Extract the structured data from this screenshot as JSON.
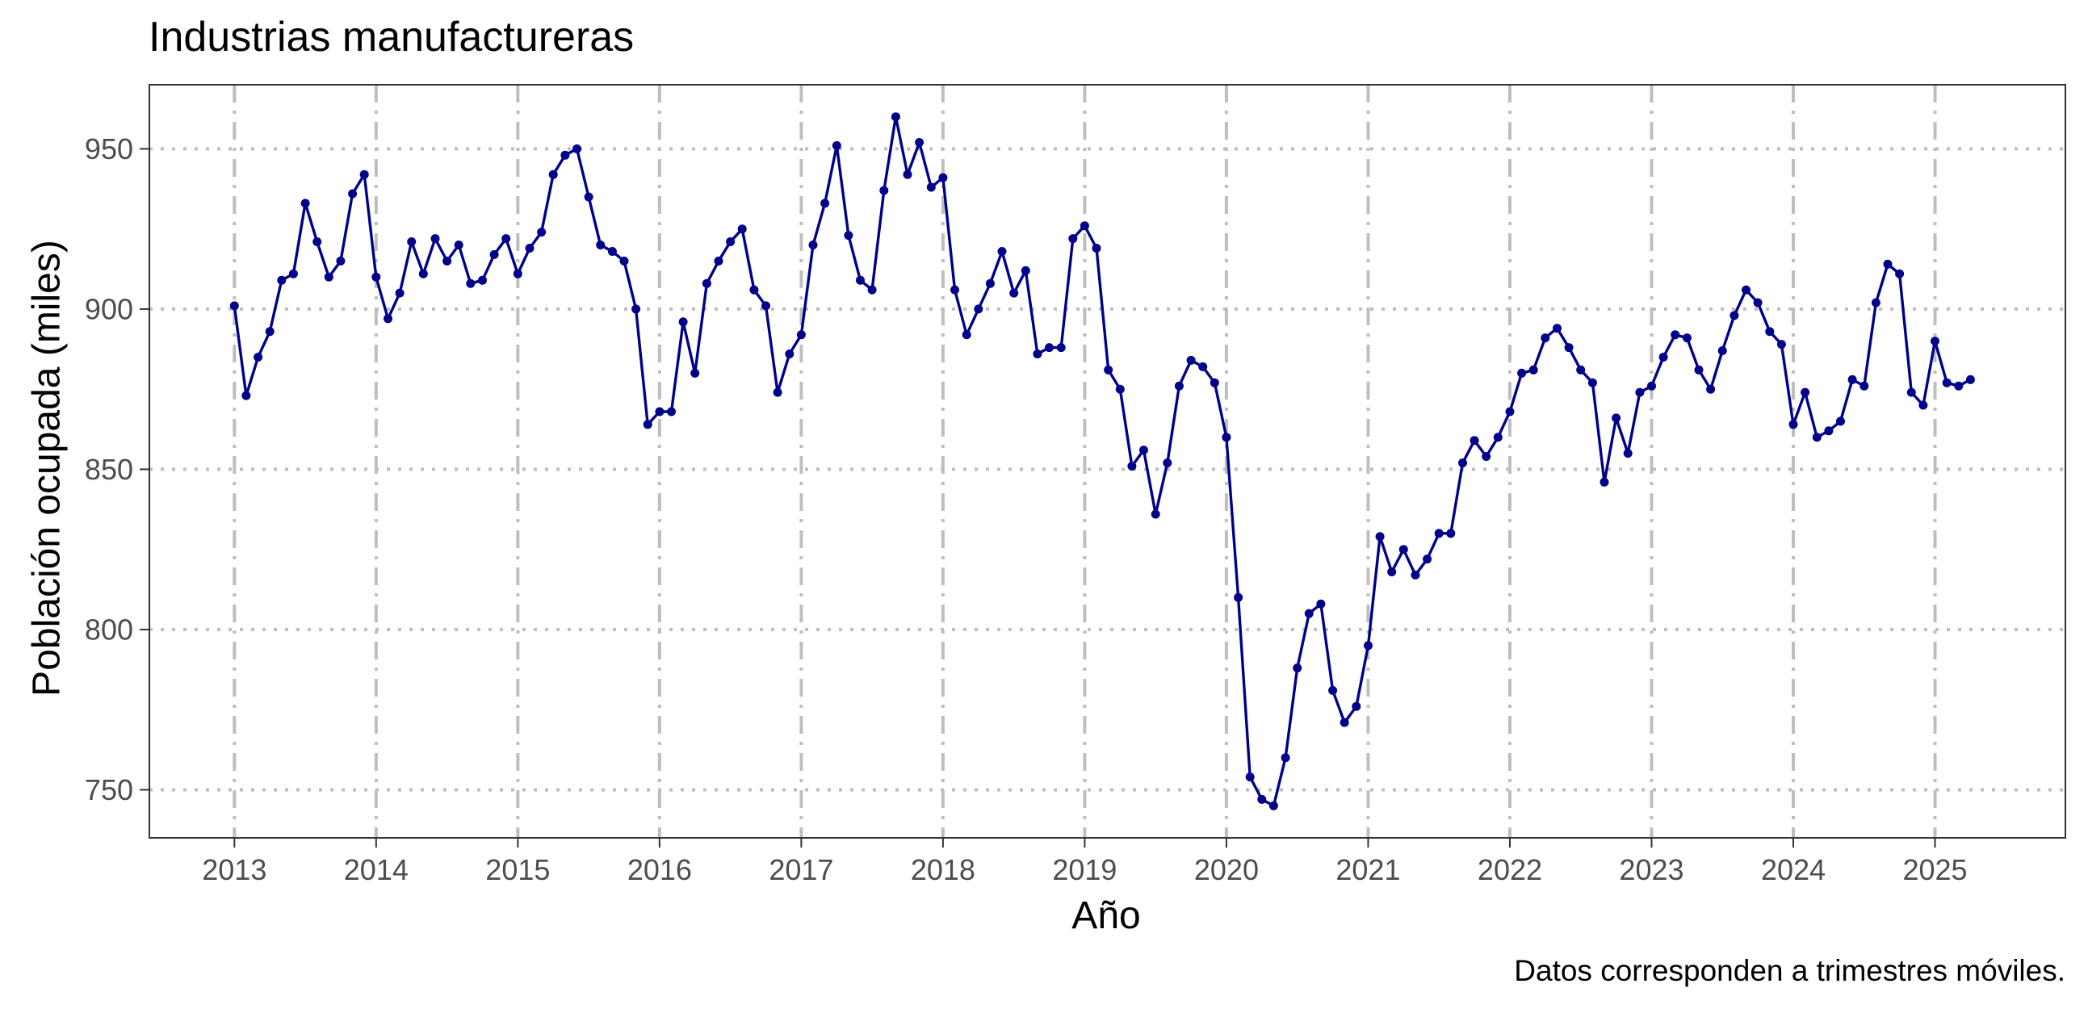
{
  "chart_data": {
    "type": "line",
    "title": "Industrias manufactureras",
    "xlabel": "Año",
    "ylabel": "Población ocupada (miles)",
    "caption": "Datos corresponden a trimestres móviles.",
    "x_ticks": [
      "2013",
      "2014",
      "2015",
      "2016",
      "2017",
      "2018",
      "2019",
      "2020",
      "2021",
      "2022",
      "2023",
      "2024",
      "2025"
    ],
    "y_ticks": [
      750,
      800,
      850,
      900,
      950
    ],
    "xlim": [
      2012.4,
      2025.92
    ],
    "ylim": [
      735,
      970
    ],
    "grid": true,
    "colors": {
      "line": "#00008B",
      "point": "#00008B",
      "grid": "#BEBEBE",
      "panel_border": "#333333"
    },
    "series": [
      {
        "start_year": 2013,
        "values": [
          901,
          873,
          885,
          893,
          909,
          911,
          933,
          921,
          910,
          915,
          936,
          942,
          910,
          897,
          905,
          921,
          911,
          922,
          915,
          920,
          908,
          909,
          917,
          922,
          911,
          919,
          924,
          942,
          948,
          950,
          935,
          920,
          918,
          915,
          900,
          864,
          868,
          868,
          896,
          880,
          908,
          915,
          921,
          925,
          906,
          901,
          874,
          886,
          892,
          920,
          933,
          951,
          923,
          909,
          906,
          937,
          960,
          942,
          952,
          938,
          941,
          906,
          892,
          900,
          908,
          918,
          905,
          912,
          886,
          888,
          888,
          922,
          926,
          919,
          881,
          875,
          851,
          856,
          836,
          852,
          876,
          884,
          882,
          877,
          860,
          810,
          754,
          747,
          745,
          760,
          788,
          805,
          808,
          781,
          771,
          776,
          795,
          829,
          818,
          825,
          817,
          822,
          830,
          830,
          852,
          859,
          854,
          860,
          868,
          880,
          881,
          891,
          894,
          888,
          881,
          877,
          846,
          866,
          855,
          874,
          876,
          885,
          892,
          891,
          881,
          875,
          887,
          898,
          906,
          902,
          893,
          889,
          864,
          874,
          860,
          862,
          865,
          878,
          876,
          902,
          914,
          911,
          874,
          870,
          890,
          877,
          876,
          878
        ]
      }
    ]
  }
}
